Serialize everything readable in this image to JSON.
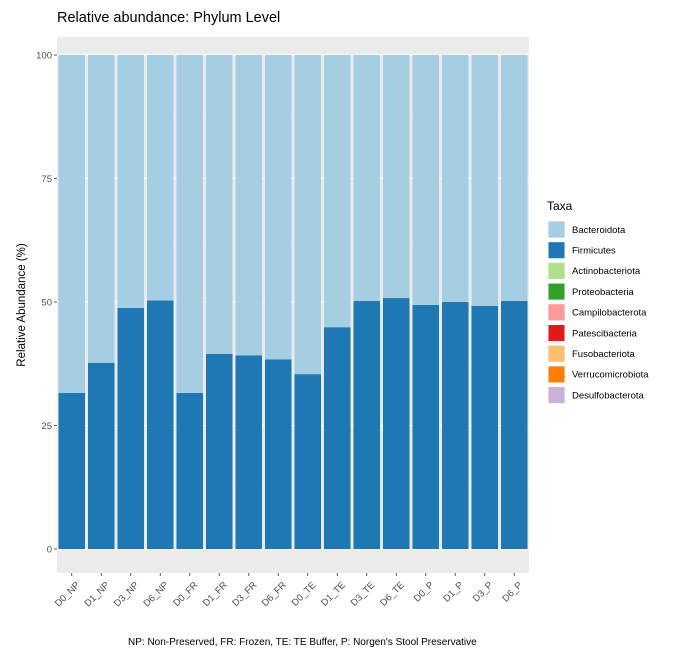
{
  "chart_data": {
    "type": "bar",
    "stacked": true,
    "title": "Relative abundance: Phylum Level",
    "ylabel": "Relative Abundance (%)",
    "xlabel": "",
    "ylim": [
      0,
      100
    ],
    "yticks": [
      0,
      25,
      50,
      75,
      100
    ],
    "grid": true,
    "legend_title": "Taxa",
    "legend_position": "right",
    "caption": "NP: Non-Preserved, FR: Frozen, TE: TE Buffer, P: Norgen's Stool Preservative",
    "categories": [
      "D0_NP",
      "D1_NP",
      "D3_NP",
      "D6_NP",
      "D0_FR",
      "D1_FR",
      "D3_FR",
      "D6_FR",
      "D0_TE",
      "D1_TE",
      "D3_TE",
      "D6_TE",
      "D0_P",
      "D1_P",
      "D3_P",
      "D6_P"
    ],
    "series": [
      {
        "name": "Bacteroidota",
        "color": "#a6cee3",
        "values": [
          68.4,
          62.3,
          51.2,
          49.7,
          68.4,
          60.5,
          60.8,
          61.6,
          64.6,
          55.1,
          49.8,
          49.2,
          50.6,
          50.0,
          50.8,
          49.8
        ]
      },
      {
        "name": "Firmicutes",
        "color": "#1f78b4",
        "values": [
          31.6,
          37.7,
          48.8,
          50.3,
          31.6,
          39.5,
          39.2,
          38.4,
          35.4,
          44.9,
          50.2,
          50.8,
          49.4,
          50.0,
          49.2,
          50.2
        ]
      },
      {
        "name": "Actinobacteriota",
        "color": "#b2df8a",
        "values": [
          0,
          0,
          0,
          0,
          0,
          0,
          0,
          0,
          0,
          0,
          0,
          0,
          0,
          0,
          0,
          0
        ]
      },
      {
        "name": "Proteobacteria",
        "color": "#33a02c",
        "values": [
          0,
          0,
          0,
          0,
          0,
          0,
          0,
          0,
          0,
          0,
          0,
          0,
          0,
          0,
          0,
          0
        ]
      },
      {
        "name": "Campilobacterota",
        "color": "#fb9a99",
        "values": [
          0,
          0,
          0,
          0,
          0,
          0,
          0,
          0,
          0,
          0,
          0,
          0,
          0,
          0,
          0,
          0
        ]
      },
      {
        "name": "Patescibacteria",
        "color": "#e31a1c",
        "values": [
          0,
          0,
          0,
          0,
          0,
          0,
          0,
          0,
          0,
          0,
          0,
          0,
          0,
          0,
          0,
          0
        ]
      },
      {
        "name": "Fusobacteriota",
        "color": "#fdbf6f",
        "values": [
          0,
          0,
          0,
          0,
          0,
          0,
          0,
          0,
          0,
          0,
          0,
          0,
          0,
          0,
          0,
          0
        ]
      },
      {
        "name": "Verrucomicrobiota",
        "color": "#ff7f00",
        "values": [
          0,
          0,
          0,
          0,
          0,
          0,
          0,
          0,
          0,
          0,
          0,
          0,
          0,
          0,
          0,
          0
        ]
      },
      {
        "name": "Desulfobacterota",
        "color": "#cab2d6",
        "values": [
          0,
          0,
          0,
          0,
          0,
          0,
          0,
          0,
          0,
          0,
          0,
          0,
          0,
          0,
          0,
          0
        ]
      }
    ],
    "stack_order_bottom_to_top": [
      "Firmicutes",
      "Bacteroidota"
    ]
  }
}
